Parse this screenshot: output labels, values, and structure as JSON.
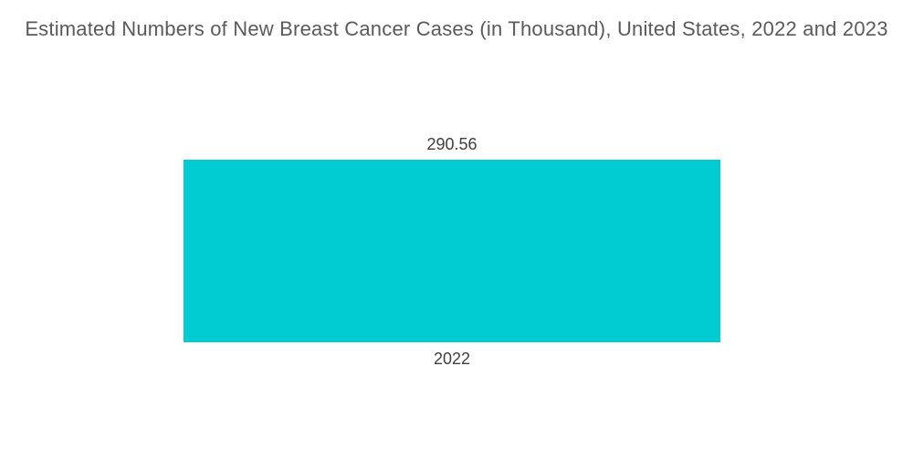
{
  "page": {
    "background": "#FFFFFF"
  },
  "header": {
    "title": "Estimated Numbers of New Breast Cancer Cases (in Thousand), United States, 2022 and 2023"
  },
  "chart_data": {
    "type": "bar",
    "title": "Estimated Numbers of New Breast Cancer Cases (in Thousand), United States, 2022 and 2023",
    "categories": [
      "2022"
    ],
    "values": [
      290.56
    ],
    "value_labels": [
      "290.56"
    ],
    "series": [
      {
        "name": "New Breast Cancer Cases (in Thousand)",
        "values": [
          290.56
        ]
      }
    ],
    "xlabel": "",
    "ylabel": "",
    "ylim": [
      0,
      290.56
    ],
    "grid": false,
    "axes_visible": false,
    "legend_position": "none",
    "colors": {
      "bar": "#00CCD1",
      "title_text": "#5A5A5A",
      "label_text": "#404040"
    }
  }
}
